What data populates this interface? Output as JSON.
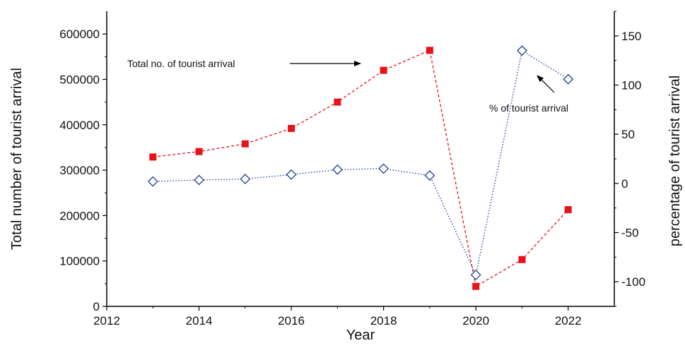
{
  "chart_data": {
    "type": "line",
    "x": [
      2013,
      2014,
      2015,
      2016,
      2017,
      2018,
      2019,
      2020,
      2021,
      2022
    ],
    "xlabel": "Year",
    "ylabel_left": "Total number of tourist arrival",
    "ylabel_right": "percentage of tourist arrival",
    "xlim": [
      2012,
      2023
    ],
    "ylim_left": [
      0,
      650000
    ],
    "ylim_right": [
      -125,
      175
    ],
    "x_ticks": [
      2012,
      2014,
      2016,
      2018,
      2020,
      2022
    ],
    "y_ticks_left": [
      0,
      100000,
      200000,
      300000,
      400000,
      500000,
      600000
    ],
    "y_ticks_right": [
      -100,
      -50,
      0,
      50,
      100,
      150
    ],
    "grid": false,
    "series": [
      {
        "axis": "left",
        "style": "dashed",
        "marker": "square",
        "color": "#e8121b",
        "values": [
          329000,
          341000,
          358000,
          392000,
          450000,
          520000,
          564000,
          44000,
          103000,
          213000
        ]
      },
      {
        "axis": "right",
        "style": "dotted",
        "marker": "diamond-open",
        "color": "#1f3c8f",
        "values": [
          2,
          3.5,
          4.5,
          9,
          14,
          15,
          8,
          -93,
          135,
          106
        ]
      }
    ],
    "annotations": [
      {
        "text": "Total no. of tourist arrival",
        "arrow": "right"
      },
      {
        "text": "% of tourist arrival",
        "arrow": "up-left"
      }
    ]
  }
}
